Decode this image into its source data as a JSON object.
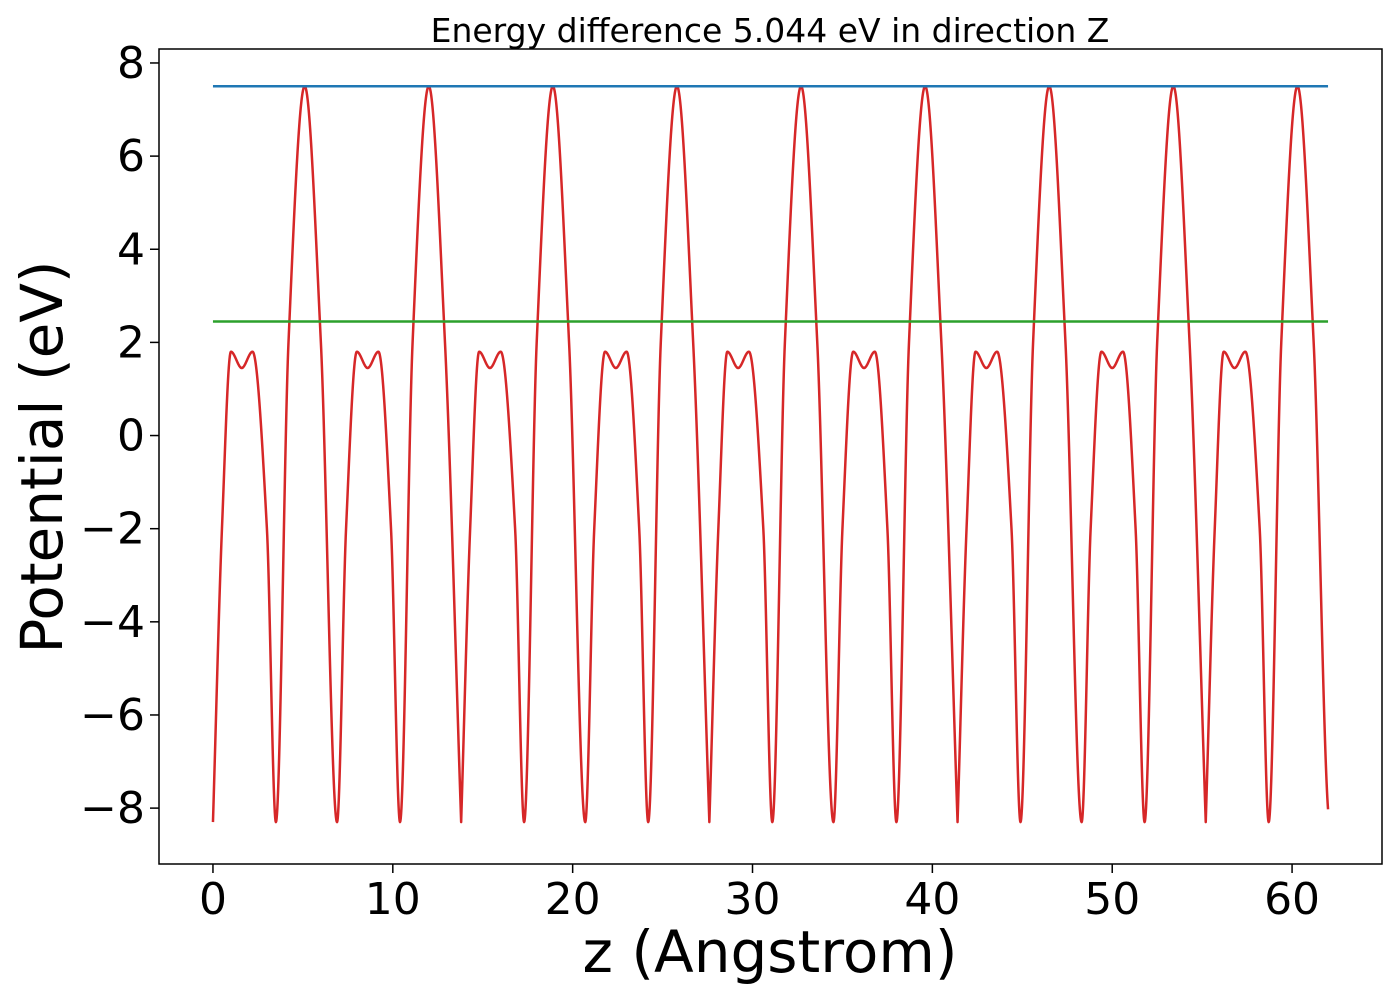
{
  "chart_data": {
    "type": "line",
    "title": "Energy difference 5.044 eV in direction Z",
    "xlabel": "z (Angstrom)",
    "ylabel": "Potential (eV)",
    "xlim": [
      -3.0,
      65.0
    ],
    "ylim": [
      -9.2,
      8.3
    ],
    "xticks": [
      0,
      10,
      20,
      30,
      40,
      50,
      60
    ],
    "xtick_labels": [
      "0",
      "10",
      "20",
      "30",
      "40",
      "50",
      "60"
    ],
    "yticks": [
      -8,
      -6,
      -4,
      -2,
      0,
      2,
      4,
      6,
      8
    ],
    "ytick_labels": [
      "−8",
      "−6",
      "−4",
      "−2",
      "0",
      "2",
      "4",
      "6",
      "8"
    ],
    "grid": false,
    "series": [
      {
        "color": "#d62728",
        "x": [
          0,
          0.5,
          1.0,
          1.6,
          2.2,
          3.0,
          3.5,
          4.2,
          5.1,
          6.0,
          6.9,
          7.4,
          8.0,
          8.6,
          9.2,
          9.9,
          10.4,
          11.1,
          12.0,
          12.9,
          13.8
        ],
        "y": [
          -8.3,
          -2.0,
          1.8,
          1.45,
          1.8,
          -2.0,
          -8.3,
          2.0,
          7.5,
          2.0,
          -8.3,
          -2.0,
          1.8,
          1.45,
          1.8,
          -2.0,
          -8.3,
          2.0,
          7.5,
          2.0,
          -8.3
        ],
        "period": 6.9,
        "x_end": 62.0
      },
      {
        "color": "#1f77b4",
        "x": [
          0,
          62.0
        ],
        "y": [
          7.5,
          7.5
        ]
      },
      {
        "color": "#2ca02c",
        "x": [
          0,
          62.0
        ],
        "y": [
          2.45,
          2.45
        ]
      }
    ]
  }
}
